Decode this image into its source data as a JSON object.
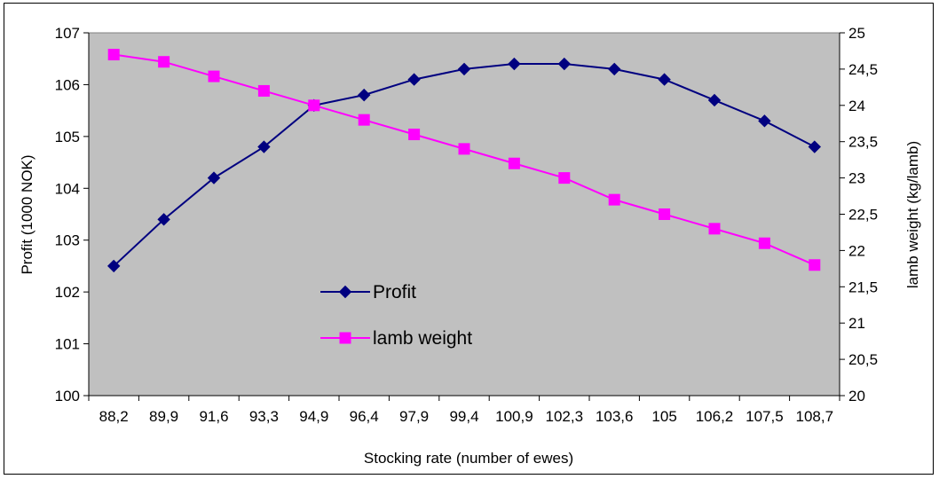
{
  "chart_data": {
    "type": "line",
    "title": "",
    "xlabel": "Stocking rate (number of ewes)",
    "ylabel_left": "Profit (1000 NOK)",
    "ylabel_right": "lamb weight (kg/lamb)",
    "categories": [
      "88,2",
      "89,9",
      "91,6",
      "93,3",
      "94,9",
      "96,4",
      "97,9",
      "99,4",
      "100,9",
      "102,3",
      "103,6",
      "105",
      "106,2",
      "107,5",
      "108,7"
    ],
    "left_axis": {
      "min": 100,
      "max": 107,
      "ticks": [
        "100",
        "101",
        "102",
        "103",
        "104",
        "105",
        "106",
        "107"
      ]
    },
    "right_axis": {
      "min": 20,
      "max": 25,
      "ticks": [
        "20",
        "20,5",
        "21",
        "21,5",
        "22",
        "22,5",
        "23",
        "23,5",
        "24",
        "24,5",
        "25"
      ]
    },
    "series": [
      {
        "name": "Profit",
        "axis": "left",
        "color": "#000080",
        "marker": "diamond",
        "values": [
          102.5,
          103.4,
          104.2,
          104.8,
          105.6,
          105.8,
          106.1,
          106.3,
          106.4,
          106.4,
          106.3,
          106.1,
          105.7,
          105.3,
          104.8
        ]
      },
      {
        "name": "lamb weight",
        "axis": "right",
        "color": "#ff00ff",
        "marker": "square",
        "values": [
          24.7,
          24.6,
          24.4,
          24.2,
          24.0,
          23.8,
          23.6,
          23.4,
          23.2,
          23.0,
          22.7,
          22.5,
          22.3,
          22.1,
          21.8
        ]
      }
    ],
    "plot_background": "#c0c0c0",
    "grid": false,
    "legend_position": "inside-lower-center"
  }
}
